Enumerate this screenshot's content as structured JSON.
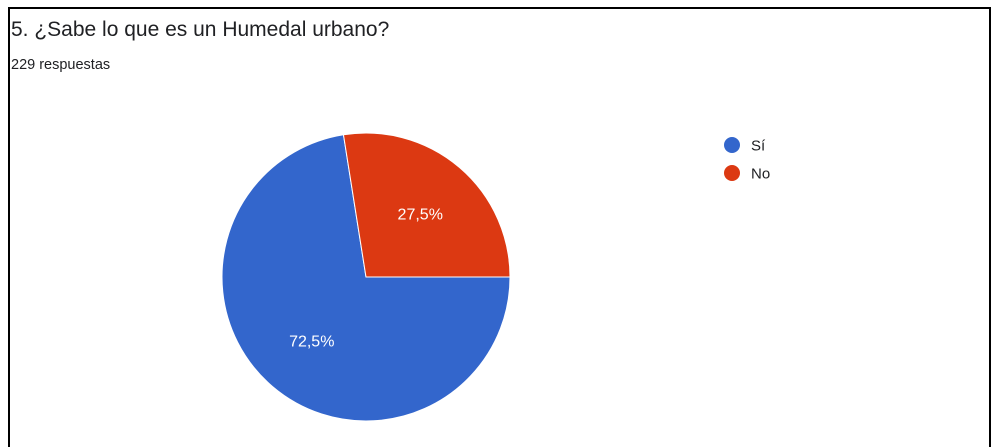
{
  "question": {
    "title": "5. ¿Sabe lo que es un Humedal urbano?",
    "responses": "229 respuestas"
  },
  "chart_data": {
    "type": "pie",
    "title": "5. ¿Sabe lo que es un Humedal urbano?",
    "subtitle": "229 respuestas",
    "legend_position": "right",
    "slices": [
      {
        "label": "Sí",
        "value": 72.5,
        "display": "72,5%",
        "color": "#3366cc"
      },
      {
        "label": "No",
        "value": 27.5,
        "display": "27,5%",
        "color": "#dc3912"
      }
    ]
  }
}
